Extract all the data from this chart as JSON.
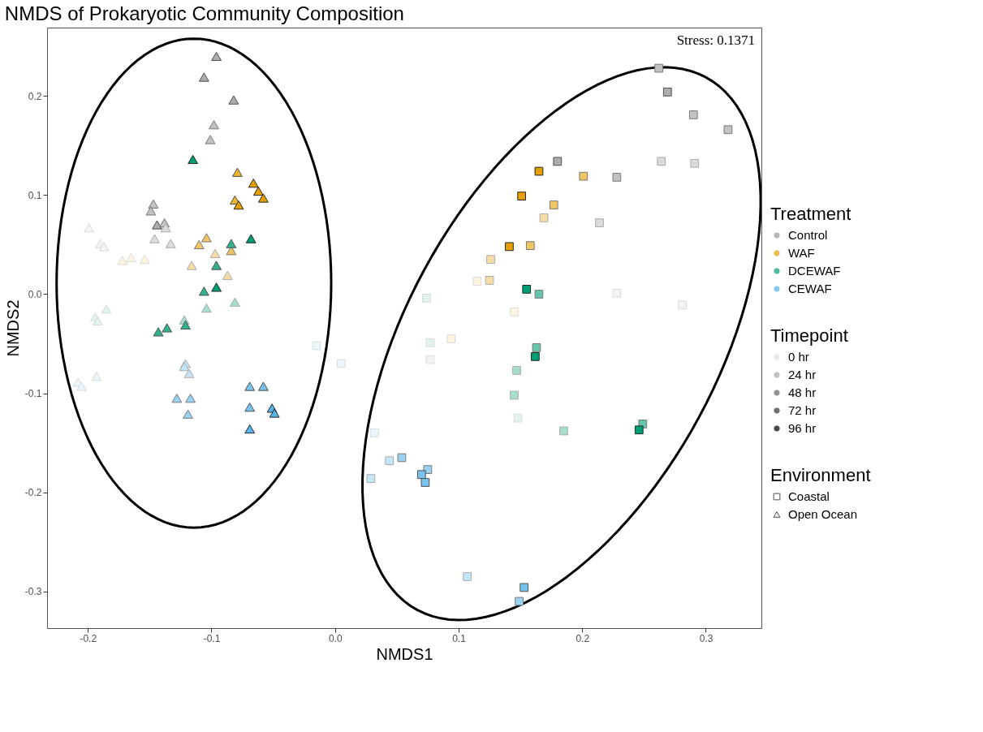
{
  "chart_data": {
    "type": "scatter",
    "title": "NMDS of Prokaryotic Community Composition",
    "xlabel": "NMDS1",
    "ylabel": "NMDS2",
    "xlim": [
      -0.233,
      0.345
    ],
    "ylim": [
      -0.337,
      0.269
    ],
    "xticks": [
      -0.2,
      -0.1,
      {
        "value": 0,
        "label": "0.0"
      },
      0.1,
      0.2,
      0.3
    ],
    "yticks": [
      -0.3,
      -0.2,
      -0.1,
      {
        "value": 0,
        "label": "0.0"
      },
      0.1,
      0.2
    ],
    "legend": "right",
    "legend_title": [
      "Treatment",
      "Timepoint",
      "Environment"
    ],
    "annotations": [
      "Stress: 0.1371"
    ],
    "series": [
      {
        "name": "Control",
        "color": "#999999",
        "marker": "triangle",
        "x": [
          -0.096,
          -0.106,
          -0.082,
          -0.098,
          -0.101,
          -0.147,
          -0.149,
          -0.144,
          -0.138,
          -0.137,
          -0.146,
          -0.133,
          -0.199,
          -0.19,
          -0.187
        ],
        "values": [
          0.24,
          0.219,
          0.196,
          0.171,
          0.156,
          0.091,
          0.084,
          0.07,
          0.072,
          0.067,
          0.056,
          0.051,
          0.067,
          0.051,
          0.048
        ],
        "colors": [
          "#adadad",
          "#adadad",
          "#adadad",
          "#c2c2c2",
          "#c2c2c2",
          "#c2c2c2",
          "#c2c2c2",
          "#adadad",
          "#c2c2c2",
          "#dbdbdb",
          "#dbdbdb",
          "#dbdbdb",
          "#f3f3f3",
          "#f3f3f3",
          "#f3f3f3"
        ]
      },
      {
        "color": "#999999",
        "marker": "square",
        "x": [
          0.262,
          0.269,
          0.29,
          0.318,
          0.18,
          0.228,
          0.264,
          0.291,
          0.214,
          0.228,
          0.281,
          0.077
        ],
        "values": [
          0.228,
          0.204,
          0.181,
          0.166,
          0.134,
          0.118,
          0.134,
          0.132,
          0.072,
          0.001,
          -0.011,
          -0.066
        ],
        "colors": [
          "#c2c2c2",
          "#adadad",
          "#c2c2c2",
          "#c2c2c2",
          "#adadad",
          "#c2c2c2",
          "#dbdbdb",
          "#dbdbdb",
          "#dbdbdb",
          "#f3f3f3",
          "#f3f3f3",
          "#f3f3f3"
        ]
      },
      {
        "name": "WAF",
        "color": "#e69f00",
        "marker": "triangle",
        "x": [
          -0.079,
          -0.066,
          -0.062,
          -0.058,
          -0.081,
          -0.078,
          -0.104,
          -0.11,
          -0.084,
          -0.097,
          -0.116,
          -0.087,
          -0.172,
          -0.165,
          -0.154
        ],
        "values": [
          0.123,
          0.112,
          0.104,
          0.097,
          0.095,
          0.09,
          0.057,
          0.05,
          0.044,
          0.041,
          0.029,
          0.019,
          0.034,
          0.037,
          0.035
        ],
        "colors": [
          "#ebb233",
          "#e69f00",
          "#e69f00",
          "#e69f00",
          "#ebb233",
          "#e69f00",
          "#f0c566",
          "#f0c566",
          "#f0c566",
          "#f6dda6",
          "#f6dda6",
          "#f6dda6",
          "#fcf4e0",
          "#fcf4e0",
          "#fcf4e0"
        ]
      },
      {
        "color": "#e69f00",
        "marker": "square",
        "x": [
          0.165,
          0.201,
          0.151,
          0.177,
          0.169,
          0.141,
          0.158,
          0.126,
          0.125,
          0.115,
          0.145,
          0.094
        ],
        "values": [
          0.124,
          0.119,
          0.099,
          0.09,
          0.077,
          0.048,
          0.049,
          0.035,
          0.014,
          0.013,
          -0.018,
          -0.045
        ],
        "colors": [
          "#e69f00",
          "#f0c566",
          "#e69f00",
          "#f0c566",
          "#f6dda6",
          "#e69f00",
          "#f0c566",
          "#f6dda6",
          "#f6dda6",
          "#fcf4e0",
          "#fcf4e0",
          "#fcf4e0"
        ]
      },
      {
        "name": "DCEWAF",
        "color": "#009e73",
        "marker": "triangle",
        "x": [
          -0.115,
          -0.068,
          -0.084,
          -0.096,
          -0.096,
          -0.106,
          -0.081,
          -0.104,
          -0.185,
          -0.194,
          -0.192,
          -0.122,
          -0.121,
          -0.136,
          -0.143
        ],
        "values": [
          0.136,
          0.056,
          0.051,
          0.029,
          0.007,
          0.003,
          -0.008,
          -0.014,
          -0.015,
          -0.023,
          -0.027,
          -0.026,
          -0.031,
          -0.034,
          -0.038
        ],
        "colors": [
          "#009e73",
          "#009e73",
          "#33b18f",
          "#33b18f",
          "#009e73",
          "#33b18f",
          "#a6ddce",
          "#a6ddce",
          "#e0f3ee",
          "#e0f3ee",
          "#e0f3ee",
          "#a6ddce",
          "#33b18f",
          "#33b18f",
          "#33b18f"
        ]
      },
      {
        "color": "#009e73",
        "marker": "square",
        "x": [
          0.155,
          0.165,
          0.163,
          0.162,
          0.147,
          0.145,
          0.074,
          0.077,
          0.148,
          0.185,
          0.249,
          0.246
        ],
        "values": [
          0.005,
          0.0,
          -0.054,
          -0.063,
          -0.077,
          -0.102,
          -0.004,
          -0.049,
          -0.125,
          -0.138,
          -0.131,
          -0.137
        ],
        "colors": [
          "#009e73",
          "#66c5ab",
          "#66c5ab",
          "#009e73",
          "#a6ddce",
          "#a6ddce",
          "#e0f3ee",
          "#e0f3ee",
          "#e0f3ee",
          "#a6ddce",
          "#66c5ab",
          "#009e73"
        ]
      },
      {
        "name": "CEWAF",
        "color": "#56b4e9",
        "marker": "triangle",
        "x": [
          -0.121,
          -0.122,
          -0.118,
          -0.128,
          -0.117,
          -0.119,
          -0.069,
          -0.058,
          -0.069,
          -0.051,
          -0.049,
          -0.069,
          -0.193,
          -0.208,
          -0.205
        ],
        "values": [
          -0.07,
          -0.073,
          -0.08,
          -0.105,
          -0.105,
          -0.121,
          -0.093,
          -0.093,
          -0.114,
          -0.115,
          -0.12,
          -0.136,
          -0.083,
          -0.089,
          -0.093
        ],
        "colors": [
          "#c4e5f7",
          "#c4e5f7",
          "#c4e5f7",
          "#9ad2f2",
          "#9ad2f2",
          "#9ad2f2",
          "#78c3ed",
          "#78c3ed",
          "#78c3ed",
          "#56b4e9",
          "#56b4e9",
          "#56b4e9",
          "#ebf6fc",
          "#ebf6fc",
          "#ebf6fc"
        ]
      },
      {
        "color": "#56b4e9",
        "marker": "square",
        "x": [
          -0.015,
          0.005,
          0.032,
          0.044,
          0.054,
          0.029,
          0.075,
          0.07,
          0.073,
          0.107,
          0.153,
          0.149
        ],
        "values": [
          -0.052,
          -0.07,
          -0.14,
          -0.168,
          -0.165,
          -0.186,
          -0.177,
          -0.182,
          -0.19,
          -0.285,
          -0.296,
          -0.31
        ],
        "colors": [
          "#ebf6fc",
          "#ebf6fc",
          "#ebf6fc",
          "#c4e5f7",
          "#9ad2f2",
          "#c4e5f7",
          "#9ad2f2",
          "#78c3ed",
          "#78c3ed",
          "#c4e5f7",
          "#78c3ed",
          "#9ad2f2"
        ]
      },
      {
        "name": "0 hr",
        "color": "#e0e0e0"
      },
      {
        "name": "24 hr",
        "color": "#a6a6a6"
      },
      {
        "name": "48 hr",
        "color": "#666666"
      },
      {
        "name": "72 hr",
        "color": "#333333"
      },
      {
        "name": "96 hr",
        "color": "#000000"
      },
      {
        "name": "Coastal",
        "color": "#000000",
        "marker": "square"
      },
      {
        "name": "Open Ocean",
        "color": "#000000",
        "marker": "triangle"
      }
    ]
  }
}
